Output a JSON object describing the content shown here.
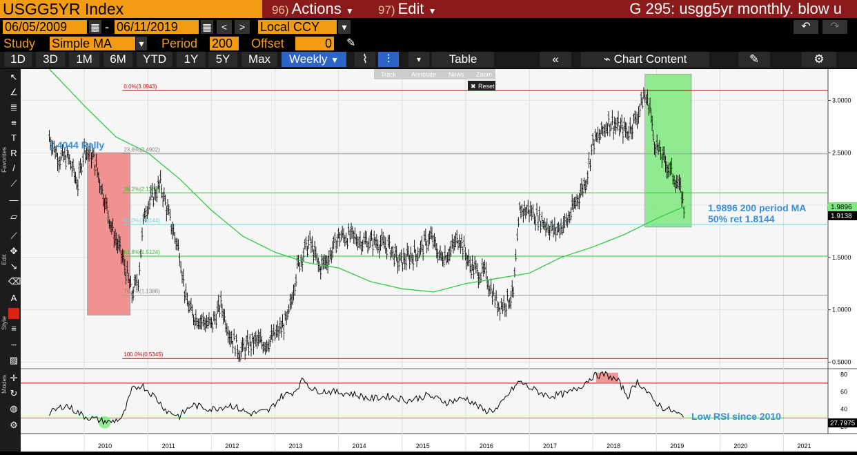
{
  "header": {
    "title": "USGG5YR Index",
    "actions_num": "96)",
    "actions_label": "Actions",
    "edit_num": "97)",
    "edit_label": "Edit",
    "page_title": "G 295: usgg5yr monthly. blow u"
  },
  "controls": {
    "start_date": "06/05/2009",
    "date_sep": "-",
    "end_date": "06/11/2019",
    "currency": "Local CCY",
    "study_label": "Study",
    "study_value": "Simple MA",
    "period_label": "Period",
    "period_value": "200",
    "offset_label": "Offset",
    "offset_value": "0"
  },
  "range_buttons": [
    "1D",
    "3D",
    "1M",
    "6M",
    "YTD",
    "1Y",
    "5Y",
    "Max"
  ],
  "frequency": "Weekly",
  "table_label": "Table",
  "chart_content_label": "Chart Content",
  "zoom_tools": [
    "Track",
    "Annotate",
    "News",
    "Zoom"
  ],
  "reset_label": "Reset",
  "side_labels": [
    "Favorites",
    "Edit",
    "Style",
    "Modes"
  ],
  "annotations": {
    "rally": "1.4044 Rally",
    "ma_note": "1.9896 200 period MA",
    "ret_note": "50% ret 1.8144",
    "rsi_note": "Low RSI since 2010"
  },
  "price_tags": {
    "ma": "1.9896",
    "last": "1.9138",
    "rsi": "27.7975"
  },
  "chart_data": {
    "type": "line",
    "subtype": "ohlc-weekly",
    "x": [
      2009.45,
      2009.6,
      2009.75,
      2009.9,
      2010.0,
      2010.15,
      2010.3,
      2010.45,
      2010.6,
      2010.75,
      2010.85,
      2010.95,
      2011.05,
      2011.2,
      2011.35,
      2011.5,
      2011.6,
      2011.7,
      2011.85,
      2012.0,
      2012.15,
      2012.3,
      2012.45,
      2012.55,
      2012.7,
      2012.85,
      2013.0,
      2013.2,
      2013.35,
      2013.45,
      2013.55,
      2013.7,
      2013.85,
      2014.0,
      2014.2,
      2014.4,
      2014.6,
      2014.8,
      2014.95,
      2015.1,
      2015.25,
      2015.45,
      2015.6,
      2015.75,
      2015.9,
      2016.05,
      2016.2,
      2016.3,
      2016.5,
      2016.6,
      2016.75,
      2016.85,
      2017.0,
      2017.2,
      2017.4,
      2017.6,
      2017.75,
      2017.9,
      2018.0,
      2018.1,
      2018.25,
      2018.4,
      2018.55,
      2018.7,
      2018.8,
      2018.9,
      2018.95,
      2019.05,
      2019.2,
      2019.3,
      2019.4,
      2019.45
    ],
    "y": [
      2.65,
      2.45,
      2.45,
      2.2,
      2.55,
      2.45,
      2.1,
      1.75,
      1.5,
      1.15,
      1.3,
      1.95,
      2.05,
      2.2,
      1.85,
      1.55,
      1.1,
      0.95,
      0.9,
      0.85,
      1.05,
      0.75,
      0.6,
      0.65,
      0.7,
      0.68,
      0.75,
      0.9,
      1.4,
      1.55,
      1.65,
      1.4,
      1.5,
      1.7,
      1.7,
      1.65,
      1.65,
      1.6,
      1.45,
      1.5,
      1.55,
      1.7,
      1.5,
      1.55,
      1.7,
      1.45,
      1.35,
      1.35,
      1.05,
      1.05,
      1.15,
      1.95,
      1.95,
      1.85,
      1.75,
      1.85,
      2.05,
      2.25,
      2.6,
      2.65,
      2.8,
      2.75,
      2.7,
      2.85,
      3.05,
      2.95,
      2.65,
      2.5,
      2.35,
      2.25,
      2.1,
      1.91
    ],
    "ma_x": [
      2009.45,
      2010.0,
      2010.5,
      2011.0,
      2011.5,
      2012.0,
      2012.5,
      2013.0,
      2013.5,
      2014.0,
      2014.5,
      2015.0,
      2015.5,
      2016.0,
      2016.5,
      2017.0,
      2017.5,
      2018.0,
      2018.5,
      2019.0,
      2019.45
    ],
    "ma": [
      3.3,
      2.95,
      2.65,
      2.5,
      2.25,
      1.95,
      1.7,
      1.55,
      1.45,
      1.4,
      1.27,
      1.2,
      1.17,
      1.25,
      1.3,
      1.35,
      1.5,
      1.6,
      1.72,
      1.87,
      1.99
    ],
    "rsi_x": [
      2009.45,
      2009.7,
      2010.0,
      2010.2,
      2010.4,
      2010.6,
      2010.75,
      2010.9,
      2011.1,
      2011.3,
      2011.5,
      2011.7,
      2012.0,
      2012.3,
      2012.6,
      2012.9,
      2013.1,
      2013.3,
      2013.45,
      2013.6,
      2013.9,
      2014.2,
      2014.5,
      2014.8,
      2015.1,
      2015.4,
      2015.7,
      2016.0,
      2016.3,
      2016.5,
      2016.7,
      2016.85,
      2017.0,
      2017.3,
      2017.6,
      2017.8,
      2018.0,
      2018.2,
      2018.4,
      2018.55,
      2018.7,
      2018.8,
      2018.95,
      2019.1,
      2019.25,
      2019.4,
      2019.45
    ],
    "rsi": [
      35,
      45,
      32,
      28,
      25,
      30,
      62,
      68,
      55,
      38,
      32,
      45,
      40,
      45,
      35,
      38,
      55,
      60,
      75,
      62,
      60,
      58,
      52,
      55,
      50,
      56,
      48,
      53,
      38,
      40,
      60,
      72,
      65,
      55,
      58,
      66,
      78,
      80,
      72,
      55,
      72,
      65,
      50,
      42,
      38,
      32,
      28
    ],
    "fib_levels": [
      {
        "label": "0.0%(3.0943)",
        "value": 3.0943
      },
      {
        "label": "23.6%(2.4902)",
        "value": 2.4902
      },
      {
        "label": "38.2%(2.1165)",
        "value": 2.1165
      },
      {
        "label": "50.0%(1.8144)",
        "value": 1.8144
      },
      {
        "label": "61.8%(1.5124)",
        "value": 1.5124
      },
      {
        "label": "76.4%(1.1386)",
        "value": 1.1386
      },
      {
        "label": "100.0%(0.5345)",
        "value": 0.5345
      }
    ],
    "y_ticks": [
      "3.0000",
      "2.5000",
      "2.0000",
      "1.5000",
      "1.0000",
      "0.5000"
    ],
    "y_tick_values": [
      3.0,
      2.5,
      2.0,
      1.5,
      1.0,
      0.5
    ],
    "rsi_ticks": [
      "80",
      "60",
      "40",
      "20"
    ],
    "rsi_tick_values": [
      80,
      60,
      40,
      20
    ],
    "x_ticks": [
      "2010",
      "2011",
      "2012",
      "2013",
      "2014",
      "2015",
      "2016",
      "2017",
      "2018",
      "2019",
      "2020",
      "2021"
    ],
    "x_tick_values": [
      2010,
      2011,
      2012,
      2013,
      2014,
      2015,
      2016,
      2017,
      2018,
      2019,
      2020,
      2021
    ],
    "xlim": [
      2009.0,
      2021.7
    ],
    "ylim": [
      0.45,
      3.3
    ],
    "rsi_ylim": [
      12,
      85
    ],
    "rsi_bands": [
      70,
      30
    ],
    "highlight_boxes": [
      {
        "name": "rally-box",
        "x0": 2010.05,
        "x1": 2010.72,
        "y0": 0.95,
        "y1": 2.5,
        "color": "#f08080"
      },
      {
        "name": "retrace-box",
        "x0": 2018.82,
        "x1": 2019.55,
        "y0": 1.79,
        "y1": 3.25,
        "color": "#7ee87e"
      }
    ],
    "colors": {
      "price": "#000000",
      "ma": "#2ecc40",
      "fib_red": "#cc0000",
      "fib_green": "#22cc22",
      "fib_cyan": "#66dddd",
      "fib_grey": "#999999",
      "annotation": "#3a8fd8"
    }
  }
}
